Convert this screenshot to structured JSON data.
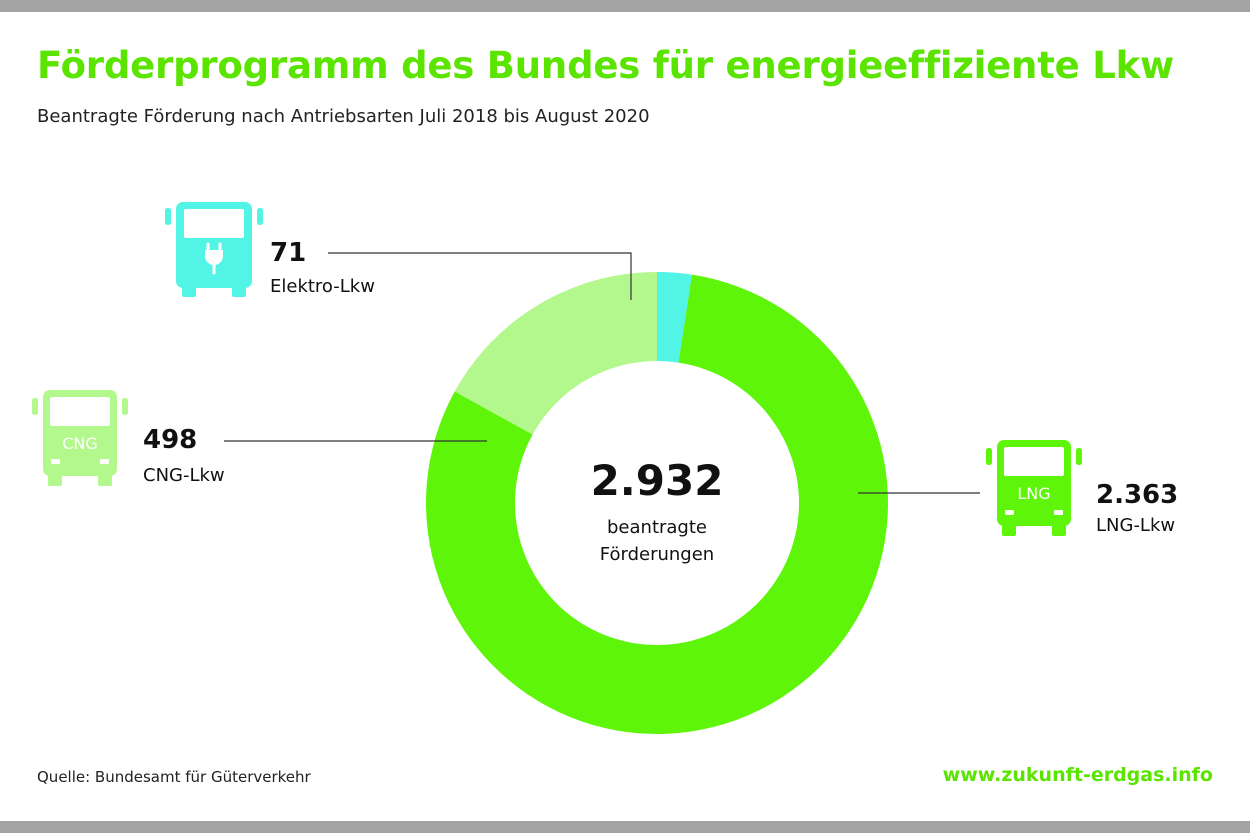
{
  "title": "Förderprogramm des Bundes für energieeffiziente Lkw",
  "subtitle": "Beantragte Förderung nach Antriebsarten Juli 2018 bis August 2020",
  "center": {
    "total": "2.932",
    "label_line1": "beantragte",
    "label_line2": "Förderungen"
  },
  "chart_data": {
    "type": "pie",
    "donut": true,
    "title": "Förderprogramm des Bundes für energieeffiziente Lkw",
    "subtitle": "Beantragte Förderung nach Antriebsarten Juli 2018 bis August 2020",
    "total": 2932,
    "slices": [
      {
        "label": "Elektro-Lkw",
        "value": 71,
        "value_text": "71",
        "color": "#52f5e5",
        "icon": "electric-truck-icon"
      },
      {
        "label": "LNG-Lkw",
        "value": 2363,
        "value_text": "2.363",
        "color": "#5ef50a",
        "icon": "lng-truck-icon",
        "icon_text": "LNG"
      },
      {
        "label": "CNG-Lkw",
        "value": 498,
        "value_text": "498",
        "color": "#b3f88c",
        "icon": "cng-truck-icon",
        "icon_text": "CNG"
      }
    ],
    "slice_order": "clockwise from top: Elektro-Lkw, LNG-Lkw, CNG-Lkw"
  },
  "footer": {
    "source": "Quelle: Bundesamt für Güterverkehr",
    "website": "www.zukunft-erdgas.info"
  },
  "colors": {
    "title": "#5ae400",
    "elektro": "#52f5e5",
    "lng": "#5ef50a",
    "cng": "#b3f88c",
    "frame": "#a3a3a3"
  }
}
